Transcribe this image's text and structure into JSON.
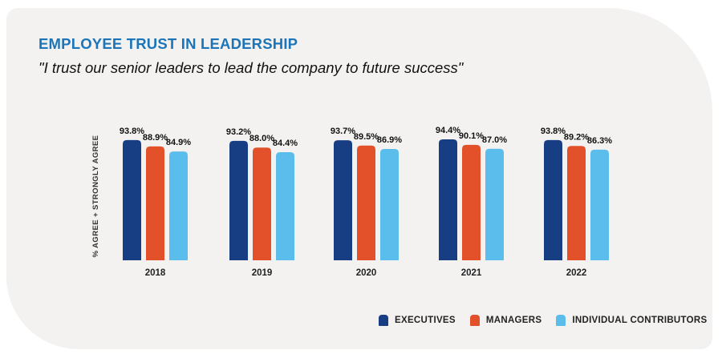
{
  "chart_data": {
    "type": "bar",
    "title": "EMPLOYEE TRUST IN LEADERSHIP",
    "subtitle": "\"I trust our senior leaders to lead the company to future success\"",
    "ylabel": "% AGREE + STRONGLY AGREE",
    "xlabel": "",
    "categories": [
      "2018",
      "2019",
      "2020",
      "2021",
      "2022"
    ],
    "series": [
      {
        "name": "EXECUTIVES",
        "values": [
          93.8,
          93.2,
          93.7,
          94.4,
          93.8
        ],
        "labels": [
          "93.8%",
          "93.2%",
          "93.7%",
          "94.4%",
          "93.8%"
        ]
      },
      {
        "name": "MANAGERS",
        "values": [
          88.9,
          88.0,
          89.5,
          90.1,
          89.2
        ],
        "labels": [
          "88.9%",
          "88.0%",
          "89.5%",
          "90.1%",
          "89.2%"
        ]
      },
      {
        "name": "INDIVIDUAL CONTRIBUTORS",
        "values": [
          84.9,
          84.4,
          86.9,
          87.0,
          86.3
        ],
        "labels": [
          "84.9%",
          "84.4%",
          "86.9%",
          "87.0%",
          "86.3%"
        ]
      }
    ],
    "ylim": [
      0,
      100
    ],
    "grid": false,
    "legend_position": "bottom-right"
  },
  "colors": {
    "title": "#1b75b8",
    "executives": "#173e83",
    "managers": "#e3512b",
    "individual_contributors": "#5bbdec",
    "background": "#f3f2f1"
  }
}
